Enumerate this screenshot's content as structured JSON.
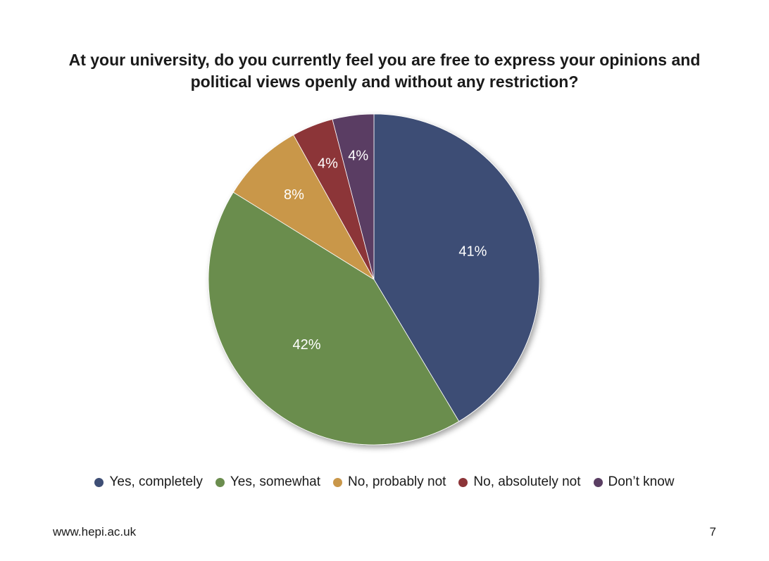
{
  "chart_data": {
    "type": "pie",
    "title_lines": [
      "At your university, do you currently feel you are free to express your opinions and",
      "political views openly and without any restriction?"
    ],
    "slices": [
      {
        "name": "Yes, completely",
        "value": 41,
        "label": "41%",
        "color": "#3e4e75"
      },
      {
        "name": "Yes, somewhat",
        "value": 42,
        "label": "42%",
        "color": "#6b8d4e"
      },
      {
        "name": "No, probably not",
        "value": 8,
        "label": "8%",
        "color": "#c9974a"
      },
      {
        "name": "No, absolutely not",
        "value": 4,
        "label": "4%",
        "color": "#8c3438"
      },
      {
        "name": "Don’t know",
        "value": 4,
        "label": "4%",
        "color": "#5a3e63"
      }
    ],
    "legend_position": "bottom"
  },
  "footer": {
    "url": "www.hepi.ac.uk",
    "page_number": "7"
  }
}
